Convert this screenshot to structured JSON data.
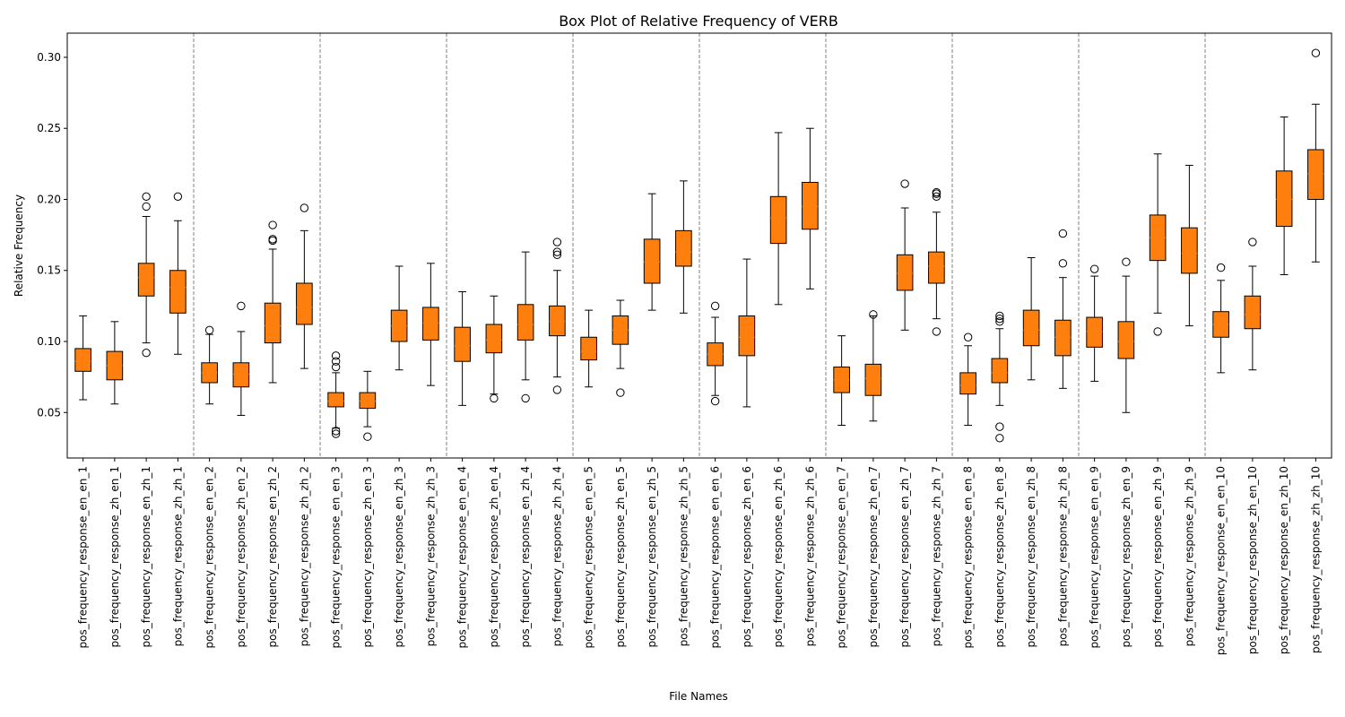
{
  "chart_data": {
    "type": "box",
    "title": "Box Plot of Relative Frequency of VERB",
    "xlabel": "File Names",
    "ylabel": "Relative Frequency",
    "ylim": [
      0.018,
      0.317
    ],
    "yticks": [
      0.05,
      0.1,
      0.15,
      0.2,
      0.25,
      0.3
    ],
    "ytick_labels": [
      "0.05",
      "0.10",
      "0.15",
      "0.20",
      "0.25",
      "0.30"
    ],
    "box_color": "#ff7f0e",
    "separator_color": "#808080",
    "group_size": 4,
    "grid": false,
    "boxes": [
      {
        "label": "pos_frequency_response_en_en_1",
        "whislo": 0.059,
        "q1": 0.079,
        "med": 0.086,
        "q3": 0.095,
        "whishi": 0.118,
        "fliers": []
      },
      {
        "label": "pos_frequency_response_zh_en_1",
        "whislo": 0.056,
        "q1": 0.073,
        "med": 0.083,
        "q3": 0.093,
        "whishi": 0.114,
        "fliers": []
      },
      {
        "label": "pos_frequency_response_en_zh_1",
        "whislo": 0.099,
        "q1": 0.132,
        "med": 0.145,
        "q3": 0.155,
        "whishi": 0.188,
        "fliers": [
          0.092,
          0.195,
          0.202
        ]
      },
      {
        "label": "pos_frequency_response_zh_zh_1",
        "whislo": 0.091,
        "q1": 0.12,
        "med": 0.138,
        "q3": 0.15,
        "whishi": 0.185,
        "fliers": [
          0.202
        ]
      },
      {
        "label": "pos_frequency_response_en_en_2",
        "whislo": 0.056,
        "q1": 0.071,
        "med": 0.078,
        "q3": 0.085,
        "whishi": 0.105,
        "fliers": [
          0.108
        ]
      },
      {
        "label": "pos_frequency_response_zh_en_2",
        "whislo": 0.048,
        "q1": 0.068,
        "med": 0.077,
        "q3": 0.085,
        "whishi": 0.107,
        "fliers": [
          0.125
        ]
      },
      {
        "label": "pos_frequency_response_en_zh_2",
        "whislo": 0.071,
        "q1": 0.099,
        "med": 0.111,
        "q3": 0.127,
        "whishi": 0.165,
        "fliers": [
          0.171,
          0.172,
          0.182
        ]
      },
      {
        "label": "pos_frequency_response_zh_zh_2",
        "whislo": 0.081,
        "q1": 0.112,
        "med": 0.124,
        "q3": 0.141,
        "whishi": 0.178,
        "fliers": [
          0.194
        ]
      },
      {
        "label": "pos_frequency_response_en_en_3",
        "whislo": 0.039,
        "q1": 0.054,
        "med": 0.058,
        "q3": 0.064,
        "whishi": 0.078,
        "fliers": [
          0.035,
          0.037,
          0.082,
          0.086,
          0.09
        ]
      },
      {
        "label": "pos_frequency_response_zh_en_3",
        "whislo": 0.04,
        "q1": 0.053,
        "med": 0.058,
        "q3": 0.064,
        "whishi": 0.079,
        "fliers": [
          0.033
        ]
      },
      {
        "label": "pos_frequency_response_en_zh_3",
        "whislo": 0.08,
        "q1": 0.1,
        "med": 0.111,
        "q3": 0.122,
        "whishi": 0.153,
        "fliers": []
      },
      {
        "label": "pos_frequency_response_zh_zh_3",
        "whislo": 0.069,
        "q1": 0.101,
        "med": 0.113,
        "q3": 0.124,
        "whishi": 0.155,
        "fliers": []
      },
      {
        "label": "pos_frequency_response_en_en_4",
        "whislo": 0.055,
        "q1": 0.086,
        "med": 0.097,
        "q3": 0.11,
        "whishi": 0.135,
        "fliers": []
      },
      {
        "label": "pos_frequency_response_zh_en_4",
        "whislo": 0.063,
        "q1": 0.092,
        "med": 0.101,
        "q3": 0.112,
        "whishi": 0.132,
        "fliers": [
          0.06
        ]
      },
      {
        "label": "pos_frequency_response_en_zh_4",
        "whislo": 0.073,
        "q1": 0.101,
        "med": 0.112,
        "q3": 0.126,
        "whishi": 0.163,
        "fliers": [
          0.06
        ]
      },
      {
        "label": "pos_frequency_response_zh_zh_4",
        "whislo": 0.075,
        "q1": 0.104,
        "med": 0.114,
        "q3": 0.125,
        "whishi": 0.15,
        "fliers": [
          0.066,
          0.161,
          0.163,
          0.17
        ]
      },
      {
        "label": "pos_frequency_response_en_en_5",
        "whislo": 0.068,
        "q1": 0.087,
        "med": 0.093,
        "q3": 0.103,
        "whishi": 0.122,
        "fliers": []
      },
      {
        "label": "pos_frequency_response_zh_en_5",
        "whislo": 0.081,
        "q1": 0.098,
        "med": 0.108,
        "q3": 0.118,
        "whishi": 0.129,
        "fliers": [
          0.064
        ]
      },
      {
        "label": "pos_frequency_response_en_zh_5",
        "whislo": 0.122,
        "q1": 0.141,
        "med": 0.156,
        "q3": 0.172,
        "whishi": 0.204,
        "fliers": []
      },
      {
        "label": "pos_frequency_response_zh_zh_5",
        "whislo": 0.12,
        "q1": 0.153,
        "med": 0.163,
        "q3": 0.178,
        "whishi": 0.213,
        "fliers": []
      },
      {
        "label": "pos_frequency_response_en_en_6",
        "whislo": 0.062,
        "q1": 0.083,
        "med": 0.091,
        "q3": 0.099,
        "whishi": 0.117,
        "fliers": [
          0.058,
          0.125
        ]
      },
      {
        "label": "pos_frequency_response_zh_en_6",
        "whislo": 0.054,
        "q1": 0.09,
        "med": 0.103,
        "q3": 0.118,
        "whishi": 0.158,
        "fliers": []
      },
      {
        "label": "pos_frequency_response_en_zh_6",
        "whislo": 0.126,
        "q1": 0.169,
        "med": 0.187,
        "q3": 0.202,
        "whishi": 0.247,
        "fliers": []
      },
      {
        "label": "pos_frequency_response_zh_zh_6",
        "whislo": 0.137,
        "q1": 0.179,
        "med": 0.195,
        "q3": 0.212,
        "whishi": 0.25,
        "fliers": []
      },
      {
        "label": "pos_frequency_response_en_en_7",
        "whislo": 0.041,
        "q1": 0.064,
        "med": 0.073,
        "q3": 0.082,
        "whishi": 0.104,
        "fliers": []
      },
      {
        "label": "pos_frequency_response_zh_en_7",
        "whislo": 0.044,
        "q1": 0.062,
        "med": 0.074,
        "q3": 0.084,
        "whishi": 0.118,
        "fliers": [
          0.119
        ]
      },
      {
        "label": "pos_frequency_response_en_zh_7",
        "whislo": 0.108,
        "q1": 0.136,
        "med": 0.148,
        "q3": 0.161,
        "whishi": 0.194,
        "fliers": [
          0.211
        ]
      },
      {
        "label": "pos_frequency_response_zh_zh_7",
        "whislo": 0.116,
        "q1": 0.141,
        "med": 0.153,
        "q3": 0.163,
        "whishi": 0.191,
        "fliers": [
          0.107,
          0.202,
          0.204,
          0.205
        ]
      },
      {
        "label": "pos_frequency_response_en_en_8",
        "whislo": 0.041,
        "q1": 0.063,
        "med": 0.069,
        "q3": 0.078,
        "whishi": 0.097,
        "fliers": [
          0.103
        ]
      },
      {
        "label": "pos_frequency_response_zh_en_8",
        "whislo": 0.055,
        "q1": 0.071,
        "med": 0.078,
        "q3": 0.088,
        "whishi": 0.109,
        "fliers": [
          0.032,
          0.04,
          0.114,
          0.116,
          0.118
        ]
      },
      {
        "label": "pos_frequency_response_en_zh_8",
        "whislo": 0.073,
        "q1": 0.097,
        "med": 0.108,
        "q3": 0.122,
        "whishi": 0.159,
        "fliers": []
      },
      {
        "label": "pos_frequency_response_zh_zh_8",
        "whislo": 0.067,
        "q1": 0.09,
        "med": 0.103,
        "q3": 0.115,
        "whishi": 0.145,
        "fliers": [
          0.155,
          0.176
        ]
      },
      {
        "label": "pos_frequency_response_en_en_9",
        "whislo": 0.072,
        "q1": 0.096,
        "med": 0.107,
        "q3": 0.117,
        "whishi": 0.146,
        "fliers": [
          0.151
        ]
      },
      {
        "label": "pos_frequency_response_zh_en_9",
        "whislo": 0.05,
        "q1": 0.088,
        "med": 0.1,
        "q3": 0.114,
        "whishi": 0.146,
        "fliers": [
          0.156
        ]
      },
      {
        "label": "pos_frequency_response_en_zh_9",
        "whislo": 0.12,
        "q1": 0.157,
        "med": 0.173,
        "q3": 0.189,
        "whishi": 0.232,
        "fliers": [
          0.107
        ]
      },
      {
        "label": "pos_frequency_response_zh_zh_9",
        "whislo": 0.111,
        "q1": 0.148,
        "med": 0.162,
        "q3": 0.18,
        "whishi": 0.224,
        "fliers": []
      },
      {
        "label": "pos_frequency_response_en_en_10",
        "whislo": 0.078,
        "q1": 0.103,
        "med": 0.112,
        "q3": 0.121,
        "whishi": 0.143,
        "fliers": [
          0.152
        ]
      },
      {
        "label": "pos_frequency_response_zh_en_10",
        "whislo": 0.08,
        "q1": 0.109,
        "med": 0.119,
        "q3": 0.132,
        "whishi": 0.153,
        "fliers": [
          0.17
        ]
      },
      {
        "label": "pos_frequency_response_en_zh_10",
        "whislo": 0.147,
        "q1": 0.181,
        "med": 0.2,
        "q3": 0.22,
        "whishi": 0.258,
        "fliers": []
      },
      {
        "label": "pos_frequency_response_zh_zh_10",
        "whislo": 0.156,
        "q1": 0.2,
        "med": 0.218,
        "q3": 0.235,
        "whishi": 0.267,
        "fliers": [
          0.303
        ]
      }
    ]
  }
}
